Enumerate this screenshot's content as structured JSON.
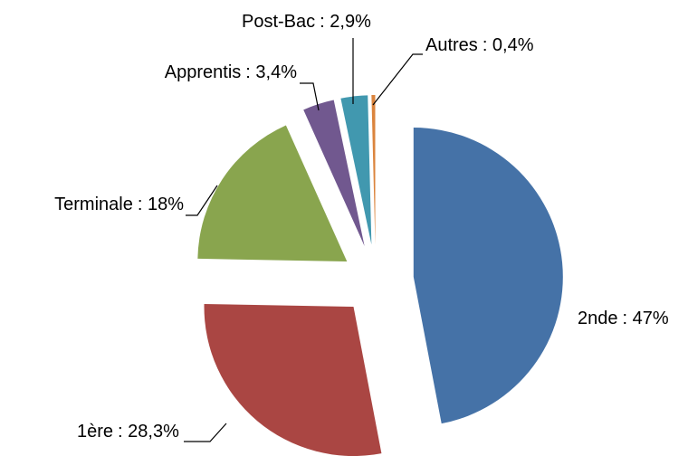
{
  "chart_data": {
    "type": "pie",
    "categories": [
      "2nde",
      "1ère",
      "Terminale",
      "Apprentis",
      "Post-Bac",
      "Autres"
    ],
    "values": [
      47,
      28.3,
      18,
      3.4,
      2.9,
      0.4
    ],
    "value_labels": [
      ": 47%",
      ": 28,3%",
      ": 18%",
      ": 3,4%",
      ": 2,9%",
      ": 0,4%"
    ],
    "colors": [
      "#4572A7",
      "#AA4643",
      "#89A54E",
      "#71588F",
      "#4198AF",
      "#DB843D"
    ]
  }
}
